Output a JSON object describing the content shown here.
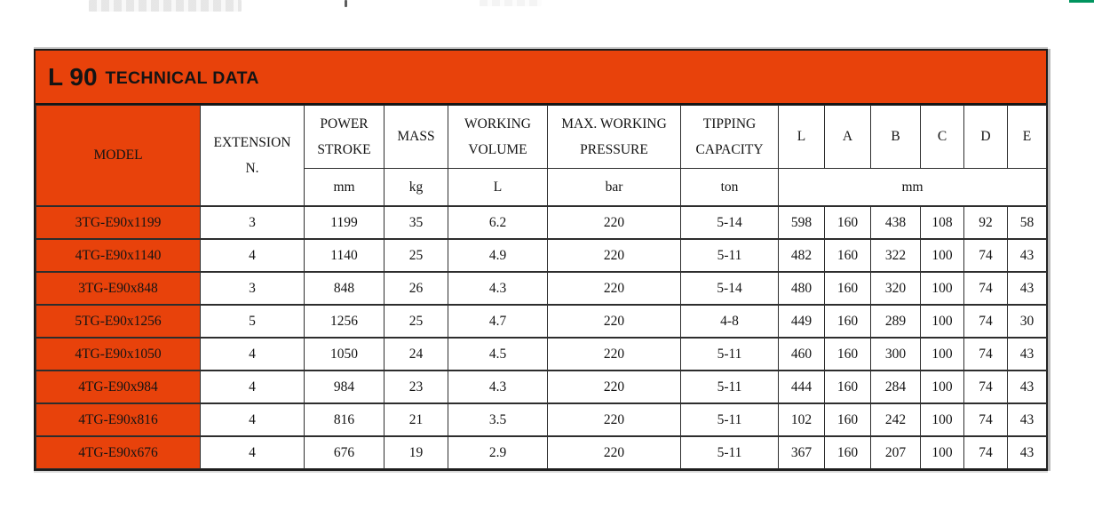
{
  "page": {
    "background": "#ffffff",
    "accent_orange": "#e8420b",
    "green_strip_color": "#00945e",
    "grid_line_color": "#2d2d2d"
  },
  "banner": {
    "title_main": "L 90",
    "title_rest": "TECHNICAL DATA"
  },
  "table": {
    "headers": {
      "model": "MODEL",
      "extension": [
        "EXTENSION",
        "N."
      ],
      "power_stroke": [
        "POWER",
        "STROKE"
      ],
      "mass": "MASS",
      "working_volume": [
        "WORKING",
        "VOLUME"
      ],
      "max_working_pressure": [
        "MAX. WORKING",
        "PRESSURE"
      ],
      "tipping_capacity": [
        "TIPPING",
        "CAPACITY"
      ],
      "dims": [
        "L",
        "A",
        "B",
        "C",
        "D",
        "E"
      ]
    },
    "units": {
      "power_stroke": "mm",
      "mass": "kg",
      "working_volume": "L",
      "max_working_pressure": "bar",
      "tipping_capacity": "ton",
      "dims": "mm"
    },
    "row_keys": [
      "model",
      "extension",
      "power_stroke",
      "mass",
      "working_volume",
      "pressure",
      "tipping",
      "L",
      "A",
      "B",
      "C",
      "D",
      "E"
    ],
    "rows": [
      {
        "model": "3TG-E90x1199",
        "extension": "3",
        "power_stroke": "1199",
        "mass": "35",
        "working_volume": "6.2",
        "pressure": "220",
        "tipping": "5-14",
        "L": "598",
        "A": "160",
        "B": "438",
        "C": "108",
        "D": "92",
        "E": "58"
      },
      {
        "model": "4TG-E90x1140",
        "extension": "4",
        "power_stroke": "1140",
        "mass": "25",
        "working_volume": "4.9",
        "pressure": "220",
        "tipping": "5-11",
        "L": "482",
        "A": "160",
        "B": "322",
        "C": "100",
        "D": "74",
        "E": "43"
      },
      {
        "model": "3TG-E90x848",
        "extension": "3",
        "power_stroke": "848",
        "mass": "26",
        "working_volume": "4.3",
        "pressure": "220",
        "tipping": "5-14",
        "L": "480",
        "A": "160",
        "B": "320",
        "C": "100",
        "D": "74",
        "E": "43"
      },
      {
        "model": "5TG-E90x1256",
        "extension": "5",
        "power_stroke": "1256",
        "mass": "25",
        "working_volume": "4.7",
        "pressure": "220",
        "tipping": "4-8",
        "L": "449",
        "A": "160",
        "B": "289",
        "C": "100",
        "D": "74",
        "E": "30"
      },
      {
        "model": "4TG-E90x1050",
        "extension": "4",
        "power_stroke": "1050",
        "mass": "24",
        "working_volume": "4.5",
        "pressure": "220",
        "tipping": "5-11",
        "L": "460",
        "A": "160",
        "B": "300",
        "C": "100",
        "D": "74",
        "E": "43"
      },
      {
        "model": "4TG-E90x984",
        "extension": "4",
        "power_stroke": "984",
        "mass": "23",
        "working_volume": "4.3",
        "pressure": "220",
        "tipping": "5-11",
        "L": "444",
        "A": "160",
        "B": "284",
        "C": "100",
        "D": "74",
        "E": "43"
      },
      {
        "model": "4TG-E90x816",
        "extension": "4",
        "power_stroke": "816",
        "mass": "21",
        "working_volume": "3.5",
        "pressure": "220",
        "tipping": "5-11",
        "L": "102",
        "A": "160",
        "B": "242",
        "C": "100",
        "D": "74",
        "E": "43"
      },
      {
        "model": "4TG-E90x676",
        "extension": "4",
        "power_stroke": "676",
        "mass": "19",
        "working_volume": "2.9",
        "pressure": "220",
        "tipping": "5-11",
        "L": "367",
        "A": "160",
        "B": "207",
        "C": "100",
        "D": "74",
        "E": "43"
      }
    ]
  }
}
